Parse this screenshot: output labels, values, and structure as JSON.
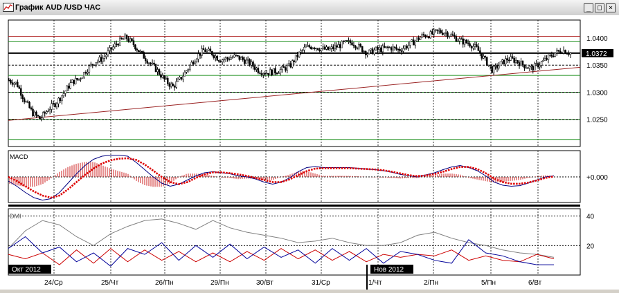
{
  "window": {
    "title": "График AUD /USD  ЧАС",
    "buttons": {
      "minimize": "_",
      "maximize": "□",
      "close": "×"
    }
  },
  "chart_data": [
    {
      "type": "candlestick",
      "title": "",
      "price_levels": [
        1.025,
        1.03,
        1.035,
        1.04
      ],
      "ylim": [
        1.02,
        1.0433
      ],
      "current_price": 1.0372,
      "resistance_line": 1.0403,
      "current_line": 1.0372,
      "green_levels": [
        1.0393,
        1.0331,
        1.03,
        1.025,
        1.0213
      ],
      "trendline": {
        "from": 1.0248,
        "to": 1.0346
      },
      "dotted_levels": [
        1.035,
        1.03,
        1.025
      ],
      "close_path": [
        1.0322,
        1.0316,
        1.0285,
        1.0262,
        1.0251,
        1.0268,
        1.028,
        1.0298,
        1.0318,
        1.0325,
        1.0342,
        1.0356,
        1.0362,
        1.0378,
        1.0392,
        1.0401,
        1.0388,
        1.037,
        1.0355,
        1.034,
        1.0322,
        1.031,
        1.0325,
        1.0345,
        1.0365,
        1.0378,
        1.0372,
        1.036,
        1.0362,
        1.0366,
        1.036,
        1.0352,
        1.034,
        1.0336,
        1.0338,
        1.0342,
        1.0348,
        1.0368,
        1.0382,
        1.0385,
        1.038,
        1.0378,
        1.0384,
        1.039,
        1.0392,
        1.0382,
        1.0372,
        1.0378,
        1.038,
        1.0382,
        1.0378,
        1.0385,
        1.0394,
        1.0404,
        1.0406,
        1.0412,
        1.041,
        1.0402,
        1.0394,
        1.039,
        1.038,
        1.036,
        1.034,
        1.0352,
        1.0362,
        1.0358,
        1.035,
        1.0344,
        1.0352,
        1.0362,
        1.0372,
        1.0378,
        1.0372
      ]
    },
    {
      "type": "histogram+line",
      "title": "MACD",
      "zero_label": "+0.000",
      "macd_path": [
        -0.2,
        -0.45,
        -0.75,
        -1.0,
        -1.12,
        -1.05,
        -0.75,
        -0.3,
        0.15,
        0.55,
        0.85,
        1.0,
        1.05,
        1.05,
        1.0,
        0.7,
        0.35,
        0.0,
        -0.3,
        -0.45,
        -0.35,
        -0.15,
        0.05,
        0.2,
        0.25,
        0.2,
        0.15,
        0.05,
        0.0,
        -0.1,
        -0.25,
        -0.35,
        -0.25,
        -0.05,
        0.25,
        0.45,
        0.5,
        0.45,
        0.45,
        0.45,
        0.45,
        0.42,
        0.38,
        0.35,
        0.3,
        0.22,
        0.12,
        0.05,
        0.0,
        0.1,
        0.2,
        0.35,
        0.48,
        0.55,
        0.45,
        0.3,
        0.05,
        -0.25,
        -0.4,
        -0.45,
        -0.42,
        -0.3,
        -0.15,
        0.0,
        0.05
      ],
      "signal_path": [
        0.0,
        -0.2,
        -0.45,
        -0.7,
        -0.9,
        -1.0,
        -0.9,
        -0.6,
        -0.25,
        0.1,
        0.4,
        0.65,
        0.8,
        0.88,
        0.9,
        0.82,
        0.6,
        0.3,
        0.0,
        -0.25,
        -0.35,
        -0.25,
        -0.05,
        0.12,
        0.22,
        0.22,
        0.18,
        0.12,
        0.05,
        -0.05,
        -0.15,
        -0.25,
        -0.25,
        -0.12,
        0.08,
        0.28,
        0.4,
        0.42,
        0.42,
        0.42,
        0.42,
        0.4,
        0.38,
        0.36,
        0.32,
        0.25,
        0.17,
        0.08,
        0.04,
        0.07,
        0.14,
        0.25,
        0.38,
        0.48,
        0.48,
        0.38,
        0.18,
        -0.08,
        -0.25,
        -0.33,
        -0.33,
        -0.27,
        -0.17,
        -0.05,
        0.02
      ]
    },
    {
      "type": "line",
      "title": "DMI",
      "yticks": [
        40,
        20
      ],
      "ylim": [
        0,
        45
      ],
      "series": [
        {
          "color": "#808080",
          "values": [
            18,
            30,
            37,
            34,
            26,
            20,
            28,
            33,
            37,
            38,
            35,
            31,
            37,
            32,
            29,
            27,
            25,
            22,
            23,
            25,
            22,
            20,
            20,
            22,
            27,
            29,
            25,
            22,
            20,
            17,
            15,
            14,
            12
          ]
        },
        {
          "color": "#cc0000",
          "values": [
            14,
            11,
            15,
            7,
            17,
            8,
            18,
            9,
            17,
            10,
            16,
            9,
            15,
            9,
            16,
            10,
            18,
            11,
            17,
            10,
            16,
            9,
            14,
            12,
            14,
            13,
            17,
            10,
            13,
            10,
            9,
            14,
            11
          ]
        },
        {
          "color": "#000099",
          "values": [
            18,
            26,
            15,
            19,
            9,
            15,
            6,
            18,
            14,
            22,
            10,
            20,
            12,
            21,
            11,
            19,
            12,
            17,
            8,
            18,
            10,
            18,
            8,
            16,
            14,
            10,
            8,
            24,
            15,
            13,
            9,
            7,
            7
          ]
        }
      ]
    }
  ],
  "months": [
    "Окт 2012",
    "Нов 2012"
  ],
  "day_labels": [
    "24/Ср",
    "25/Чт",
    "26/Пн",
    "29/Пн",
    "30/Вт",
    "31/Ср",
    "1/Чт",
    "2/Пн",
    "5/Пн",
    "6/Вт"
  ]
}
